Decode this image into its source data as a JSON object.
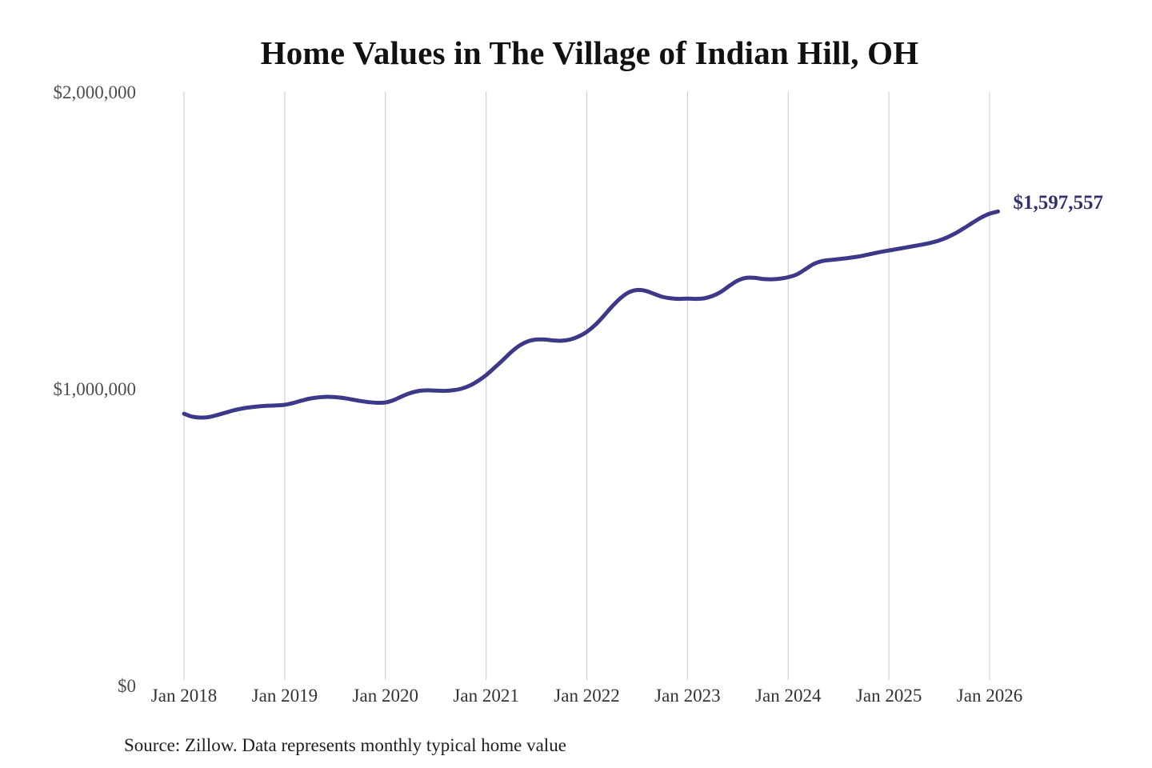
{
  "title": "Home Values in The Village of Indian Hill, OH",
  "source_note": "Source: Zillow. Data represents monthly typical home value",
  "annotation": {
    "label": "$1,597,557"
  },
  "colors": {
    "line": "#3e3889",
    "annotation": "#33306f",
    "grid": "#c9c9c9",
    "y_label": "#4d4d4d",
    "x_label": "#333333",
    "title": "#111111",
    "background": "#ffffff"
  },
  "chart_data": {
    "type": "line",
    "title": "Home Values in The Village of Indian Hill, OH",
    "xlabel": "",
    "ylabel": "",
    "ylim": [
      0,
      2000000
    ],
    "grid": "vertical-year-lines",
    "legend": "none",
    "x_tick_labels": [
      "Jan 2018",
      "Jan 2019",
      "Jan 2020",
      "Jan 2021",
      "Jan 2022",
      "Jan 2023",
      "Jan 2024",
      "Jan 2025",
      "Jan 2026"
    ],
    "y_ticks": [
      {
        "value": 0,
        "label": "$0"
      },
      {
        "value": 1000000,
        "label": "$1,000,000"
      },
      {
        "value": 2000000,
        "label": "$2,000,000"
      }
    ],
    "series_name": "Monthly typical home value (USD)",
    "x_start": "Jan 2018",
    "x_step": "1 month",
    "values": [
      916000,
      906000,
      903000,
      905000,
      912000,
      920000,
      928000,
      934000,
      938000,
      941000,
      943000,
      944000,
      946000,
      952000,
      960000,
      967000,
      971000,
      973000,
      972000,
      969000,
      964000,
      959000,
      955000,
      953000,
      954000,
      962000,
      975000,
      986000,
      993000,
      995000,
      994000,
      993000,
      995000,
      1000000,
      1010000,
      1026000,
      1046000,
      1071000,
      1097000,
      1124000,
      1146000,
      1160000,
      1166000,
      1166000,
      1163000,
      1162000,
      1166000,
      1176000,
      1192000,
      1215000,
      1245000,
      1277000,
      1305000,
      1325000,
      1333000,
      1330000,
      1320000,
      1310000,
      1305000,
      1303000,
      1304000,
      1303000,
      1305000,
      1313000,
      1327000,
      1347000,
      1365000,
      1374000,
      1374000,
      1370000,
      1369000,
      1371000,
      1376000,
      1385000,
      1402000,
      1420000,
      1430000,
      1434000,
      1437000,
      1440000,
      1444000,
      1449000,
      1455000,
      1461000,
      1466000,
      1471000,
      1476000,
      1481000,
      1486000,
      1492000,
      1500000,
      1511000,
      1525000,
      1542000,
      1560000,
      1577000,
      1590000,
      1597557
    ],
    "final_value": 1597557,
    "final_value_label": "$1,597,557"
  }
}
